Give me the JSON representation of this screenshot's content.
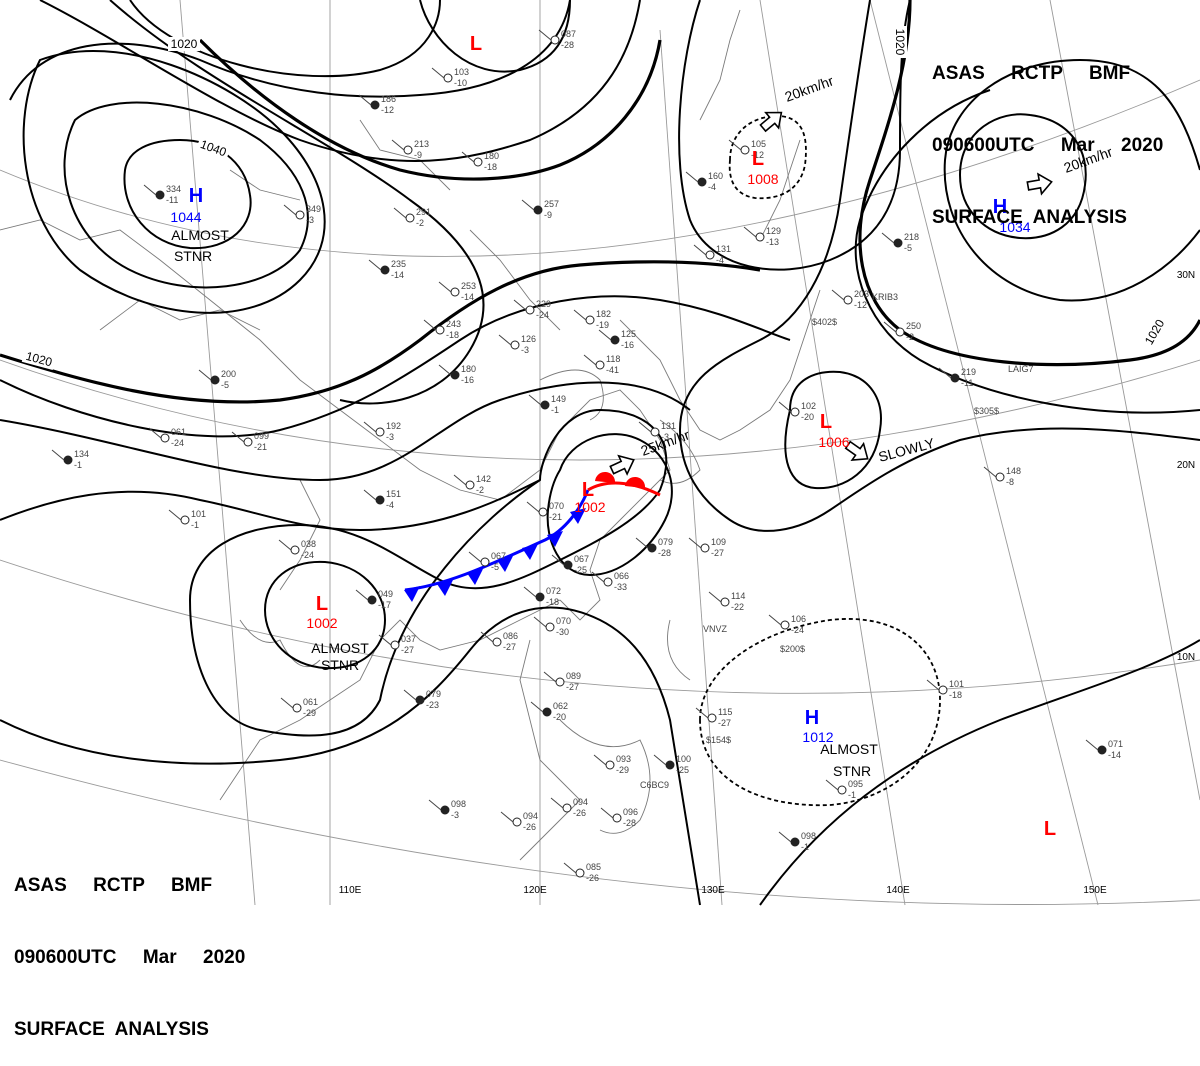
{
  "header": {
    "line1": "ASAS     RCTP     BMF",
    "line2": "090600UTC     Mar     2020",
    "line3": "SURFACE  ANALYSIS"
  },
  "colors": {
    "high": "#0000ff",
    "low": "#ff0000",
    "line": "#000000",
    "grid": "#999999",
    "coast": "#7a7a7a",
    "station": "#444444"
  },
  "lon_labels": [
    "110E",
    "120E",
    "130E",
    "140E",
    "150E"
  ],
  "lat_labels": [
    "30N",
    "20N",
    "10N"
  ],
  "isobar_labels": [
    "1020",
    "1040",
    "1020",
    "1020",
    "1020"
  ],
  "pressure_systems": [
    {
      "type": "H",
      "value": "1044",
      "note1": "ALMOST",
      "note2": "STNR"
    },
    {
      "type": "H",
      "value": "1034",
      "motion": "20km/hr"
    },
    {
      "type": "L",
      "value": "1008",
      "motion": "20km/hr"
    },
    {
      "type": "L",
      "value": "1006",
      "motion": "SLOWLY"
    },
    {
      "type": "L",
      "value": "1002",
      "motion": "25km/hr"
    },
    {
      "type": "L",
      "value": "1002",
      "note1": "ALMOST",
      "note2": "STNR"
    },
    {
      "type": "H",
      "value": "1012",
      "note1": "ALMOST",
      "note2": "STNR"
    },
    {
      "type": "L",
      "value": ""
    },
    {
      "type": "L",
      "value": ""
    }
  ],
  "stations": [
    {
      "a": "334",
      "b": "-11"
    },
    {
      "a": "349",
      "b": "-3"
    },
    {
      "a": "291",
      "b": "-2"
    },
    {
      "a": "235",
      "b": "-14"
    },
    {
      "a": "253",
      "b": "-14"
    },
    {
      "a": "243",
      "b": "-18"
    },
    {
      "a": "180",
      "b": "-16"
    },
    {
      "a": "229",
      "b": "-24"
    },
    {
      "a": "182",
      "b": "-19"
    },
    {
      "a": "186",
      "b": "-12"
    },
    {
      "a": "213",
      "b": "-9"
    },
    {
      "a": "180",
      "b": "-18"
    },
    {
      "a": "257",
      "b": "-9"
    },
    {
      "a": "103",
      "b": "-10"
    },
    {
      "a": "087",
      "b": "-28"
    },
    {
      "a": "200",
      "b": "-5"
    },
    {
      "a": "192",
      "b": "-3"
    },
    {
      "a": "142",
      "b": "-2"
    },
    {
      "a": "151",
      "b": "-4"
    },
    {
      "a": "099",
      "b": "-21"
    },
    {
      "a": "061",
      "b": "-24"
    },
    {
      "a": "134",
      "b": "-1"
    },
    {
      "a": "101",
      "b": "-1"
    },
    {
      "a": "038",
      "b": "-24"
    },
    {
      "a": "049",
      "b": "-17"
    },
    {
      "a": "037",
      "b": "-27"
    },
    {
      "a": "067",
      "b": "-5"
    },
    {
      "a": "067",
      "b": "-25"
    },
    {
      "a": "066",
      "b": "-33"
    },
    {
      "a": "070",
      "b": "-21"
    },
    {
      "a": "079",
      "b": "-28"
    },
    {
      "a": "109",
      "b": "-27"
    },
    {
      "a": "114",
      "b": "-22"
    },
    {
      "a": "072",
      "b": "-18"
    },
    {
      "a": "070",
      "b": "-30"
    },
    {
      "a": "086",
      "b": "-27"
    },
    {
      "a": "079",
      "b": "-23"
    },
    {
      "a": "061",
      "b": "-29"
    },
    {
      "a": "089",
      "b": "-27"
    },
    {
      "a": "062",
      "b": "-20"
    },
    {
      "a": "115",
      "b": "-27"
    },
    {
      "a": "093",
      "b": "-29"
    },
    {
      "a": "100",
      "b": "-25"
    },
    {
      "a": "094",
      "b": "-26"
    },
    {
      "a": "096",
      "b": "-28"
    },
    {
      "a": "098",
      "b": "-3"
    },
    {
      "a": "094",
      "b": "-26"
    },
    {
      "a": "085",
      "b": "-26"
    },
    {
      "a": "098",
      "b": "-1"
    },
    {
      "a": "106",
      "b": "-24"
    },
    {
      "a": "101",
      "b": "-18"
    },
    {
      "a": "071",
      "b": "-14"
    },
    {
      "a": "095",
      "b": "-1"
    },
    {
      "a": "105",
      "b": "-12"
    },
    {
      "a": "160",
      "b": "-4"
    },
    {
      "a": "131",
      "b": "-4"
    },
    {
      "a": "129",
      "b": "-13"
    },
    {
      "a": "218",
      "b": "-5"
    },
    {
      "a": "203",
      "b": "-12"
    },
    {
      "a": "250",
      "b": "-2"
    },
    {
      "a": "219",
      "b": "-11"
    },
    {
      "a": "148",
      "b": "-8"
    },
    {
      "a": "102",
      "b": "-20"
    },
    {
      "a": "125",
      "b": "-16"
    },
    {
      "a": "118",
      "b": "-41"
    },
    {
      "a": "131",
      "b": "-3"
    },
    {
      "a": "149",
      "b": "-1"
    },
    {
      "a": "126",
      "b": "-3"
    }
  ],
  "station_codes": [
    "$402$",
    "$305$",
    "$200$",
    "$154$",
    "VNVZ",
    "C6BC9",
    "LAIG7",
    "KRIB3"
  ]
}
